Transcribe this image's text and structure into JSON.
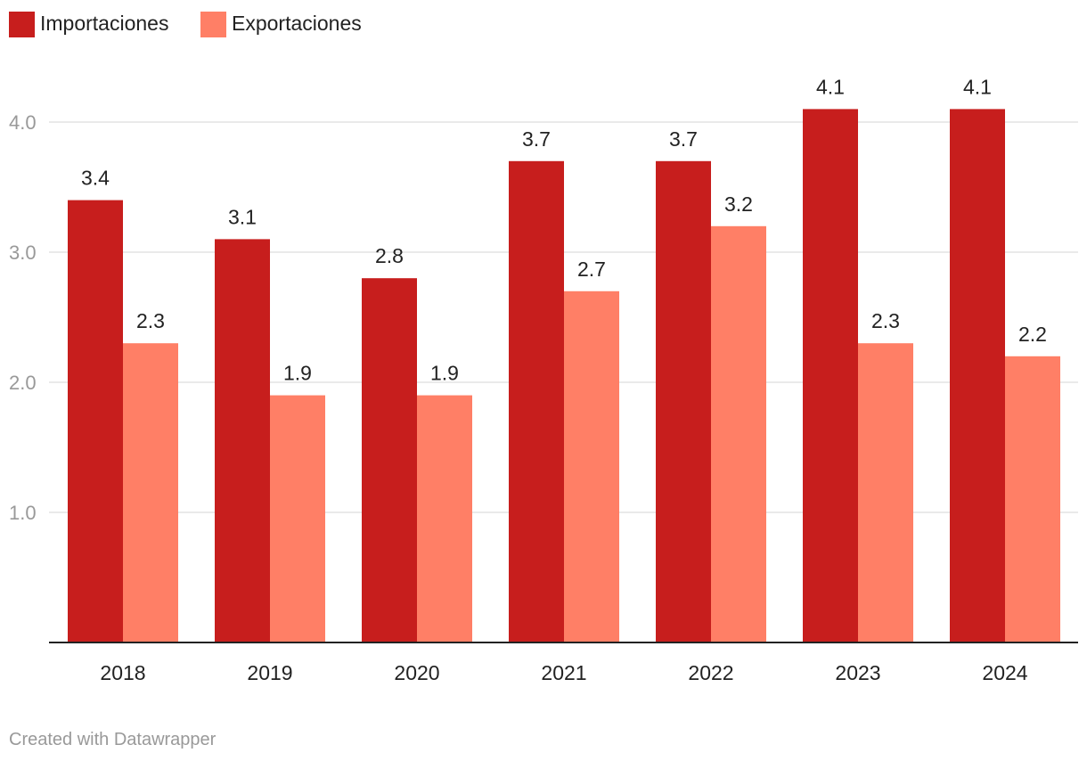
{
  "chart_data": {
    "type": "bar",
    "title": "",
    "xlabel": "",
    "ylabel": "",
    "categories": [
      "2018",
      "2019",
      "2020",
      "2021",
      "2022",
      "2023",
      "2024"
    ],
    "series": [
      {
        "name": "Importaciones",
        "color": "#c71e1d",
        "values": [
          3.4,
          3.1,
          2.8,
          3.7,
          3.7,
          4.1,
          4.1
        ],
        "labels": [
          "3.4",
          "3.1",
          "2.8",
          "3.7",
          "3.7",
          "4.1",
          "4.1"
        ]
      },
      {
        "name": "Exportaciones",
        "color": "#ff7f66",
        "values": [
          2.3,
          1.9,
          1.9,
          2.7,
          3.2,
          2.3,
          2.2
        ],
        "labels": [
          "2.3",
          "1.9",
          "1.9",
          "2.7",
          "3.2",
          "2.3",
          "2.2"
        ]
      }
    ],
    "ylim": [
      0,
      4.3
    ],
    "yticks": [
      1.0,
      2.0,
      3.0,
      4.0
    ],
    "ytick_labels": [
      "1.0",
      "2.0",
      "3.0",
      "4.0"
    ],
    "grid": true,
    "legend_position": "top-left"
  },
  "footer": {
    "credit": "Created with Datawrapper"
  }
}
